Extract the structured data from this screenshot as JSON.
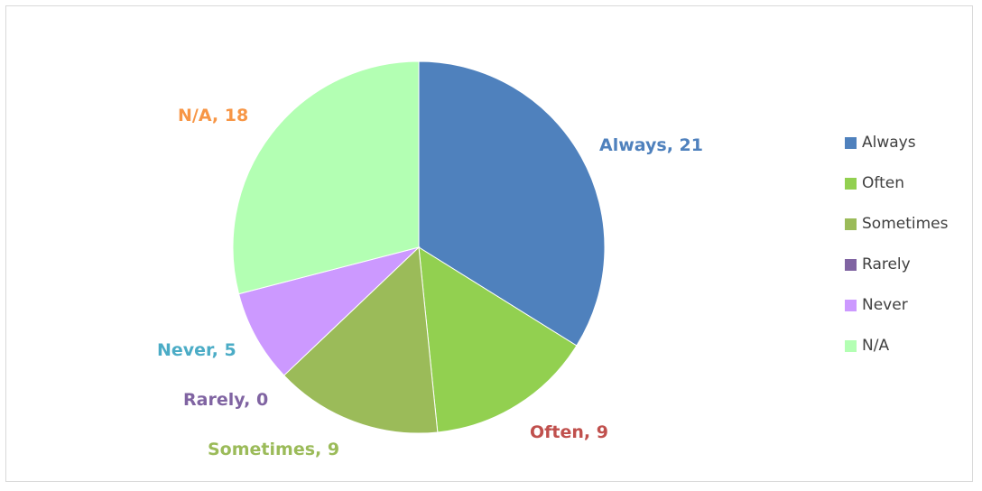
{
  "chart_data": {
    "type": "pie",
    "title": "",
    "categories": [
      "Always",
      "Often",
      "Sometimes",
      "Rarely",
      "Never",
      "N/A"
    ],
    "values": [
      21,
      9,
      9,
      0,
      5,
      18
    ],
    "data_labels": [
      "Always, 21",
      "Often, 9",
      "Sometimes, 9",
      "Rarely, 0",
      "Never, 5",
      "N/A, 18"
    ],
    "colors": [
      "#4F81BD",
      "#92D050",
      "#9BBB59",
      "#8064A2",
      "#CC99FF",
      "#B3FFB3"
    ],
    "label_colors": [
      "#4F81BD",
      "#C0504D",
      "#9BBB59",
      "#8064A2",
      "#4BACC6",
      "#F79646"
    ],
    "legend_position": "right",
    "start_angle": "12 o'clock",
    "direction": "clockwise"
  }
}
